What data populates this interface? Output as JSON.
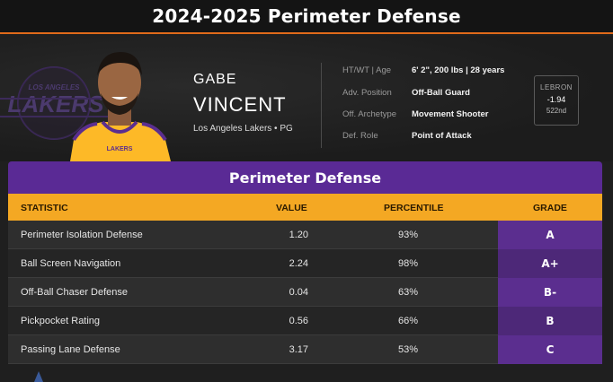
{
  "page": {
    "title": "2024-2025 Perimeter Defense"
  },
  "player": {
    "first_name": "GABE",
    "last_name": "VINCENT",
    "team_position": "Los Angeles Lakers • PG",
    "logo_text": "LAKERS",
    "logo_sub": "LOS ANGELES",
    "jersey_text": "LAKERS",
    "bio": [
      {
        "label": "HT/WT | Age",
        "value": "6' 2\", 200 lbs | 28 years"
      },
      {
        "label": "Adv. Position",
        "value": "Off-Ball Guard"
      },
      {
        "label": "Off. Archetype",
        "value": "Movement Shooter"
      },
      {
        "label": "Def. Role",
        "value": "Point of Attack"
      }
    ],
    "lebron": {
      "title": "LEBRON",
      "value": "-1.94",
      "rank": "522nd"
    }
  },
  "table": {
    "title": "Perimeter Defense",
    "headers": {
      "statistic": "STATISTIC",
      "value": "VALUE",
      "percentile": "PERCENTILE",
      "grade": "GRADE"
    },
    "rows": [
      {
        "statistic": "Perimeter Isolation Defense",
        "value": "1.20",
        "percentile": "93%",
        "grade": "A"
      },
      {
        "statistic": "Ball Screen Navigation",
        "value": "2.24",
        "percentile": "98%",
        "grade": "A+"
      },
      {
        "statistic": "Off-Ball Chaser Defense",
        "value": "0.04",
        "percentile": "63%",
        "grade": "B-"
      },
      {
        "statistic": "Pickpocket Rating",
        "value": "0.56",
        "percentile": "66%",
        "grade": "B"
      },
      {
        "statistic": "Passing Lane Defense",
        "value": "3.17",
        "percentile": "53%",
        "grade": "C"
      }
    ]
  },
  "colors": {
    "accent_orange": "#e06a1a",
    "header_purple": "#5a2a95",
    "column_gold": "#f4a823",
    "grade_purple": "#5b2e8f",
    "lakers_gold": "#fdb927"
  }
}
